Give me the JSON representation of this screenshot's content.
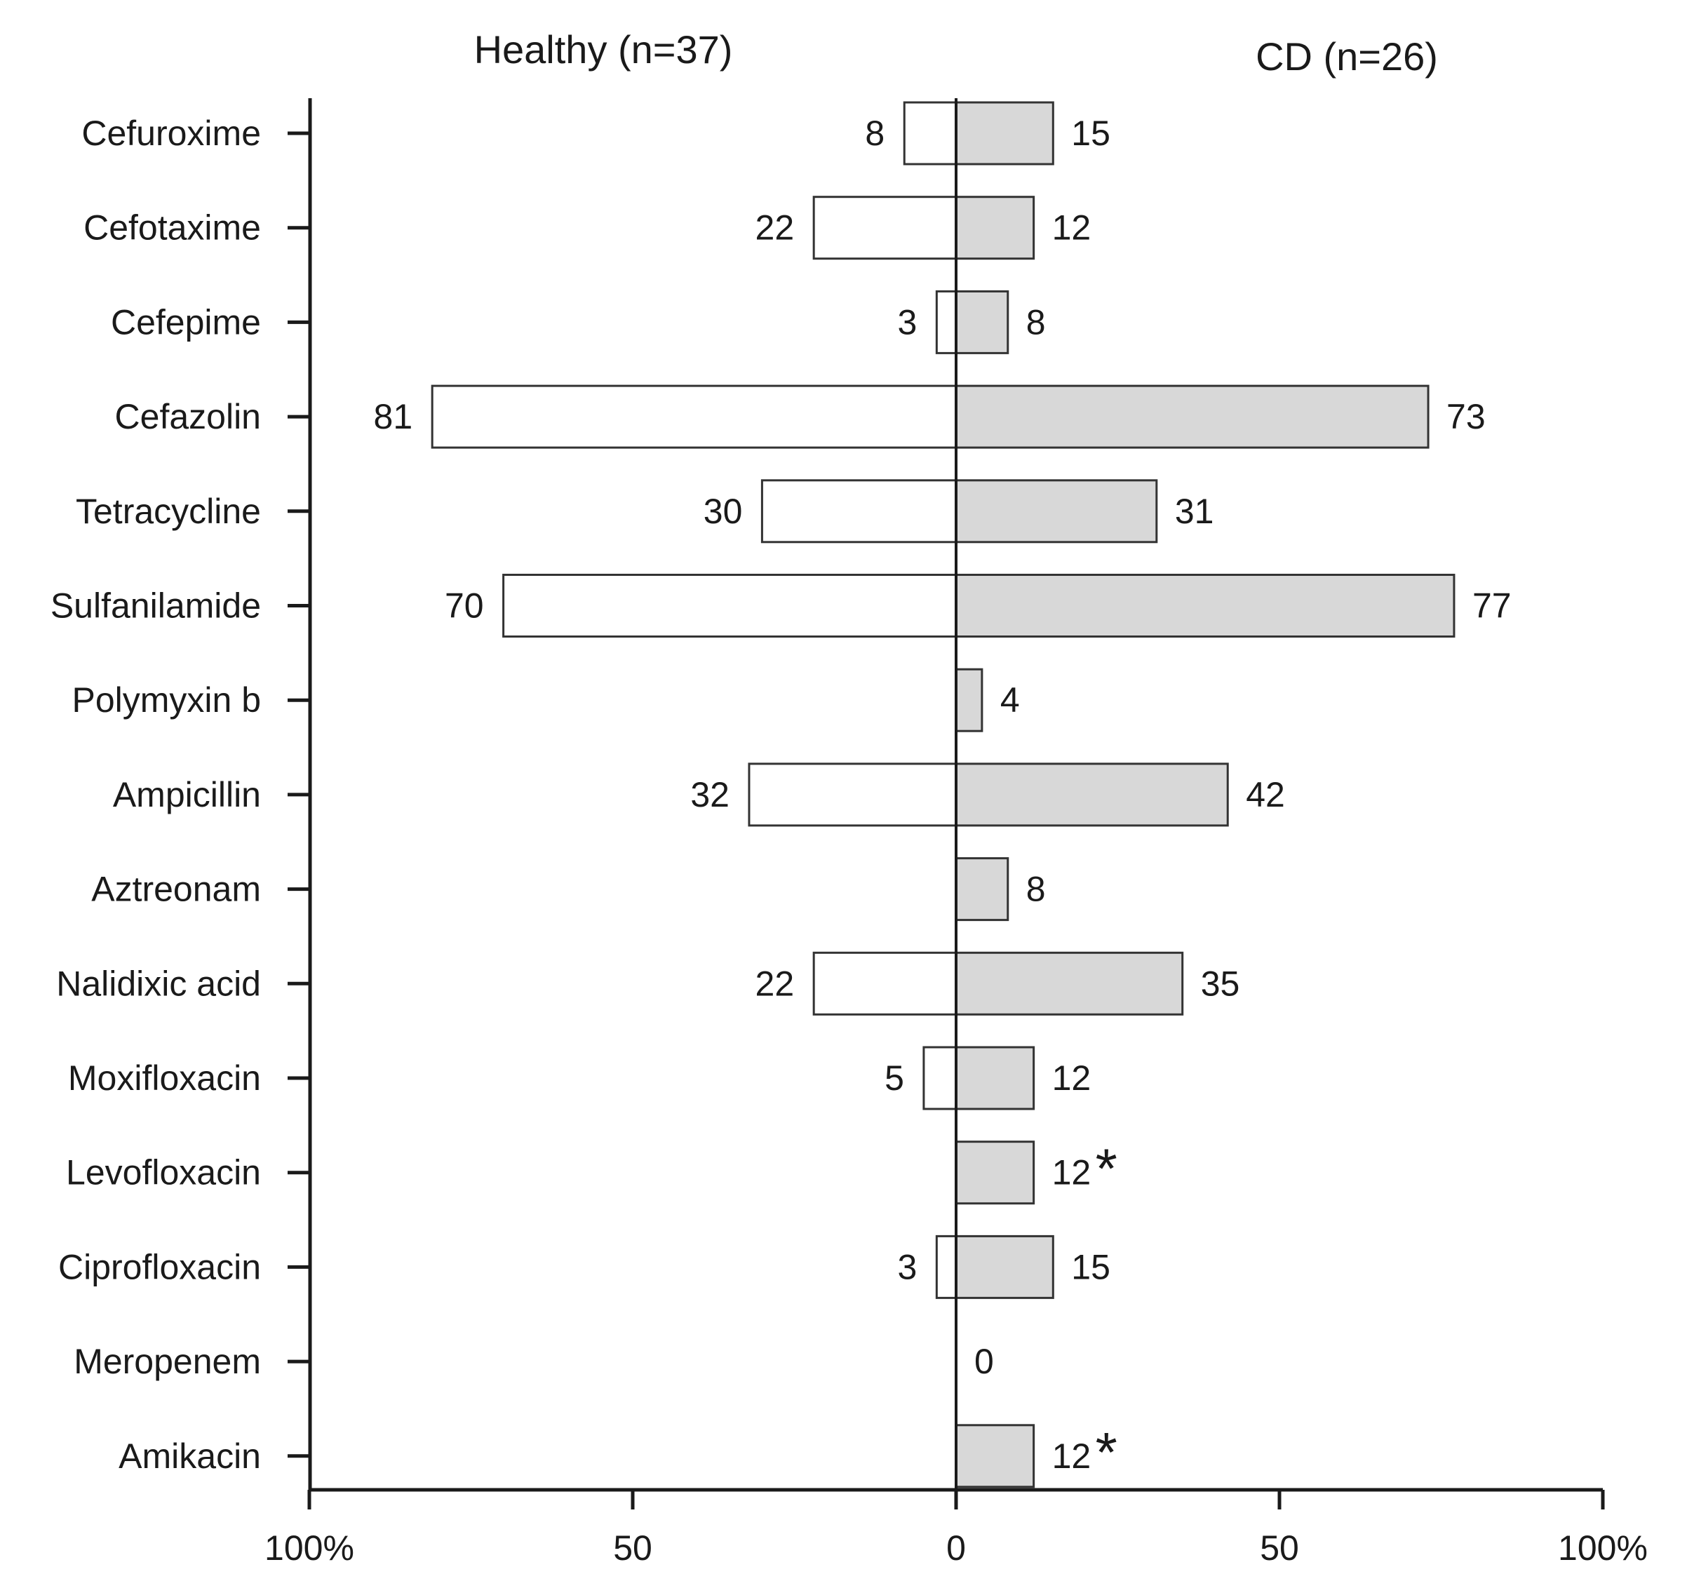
{
  "chart_data": {
    "type": "bar",
    "orientation": "horizontal-diverging",
    "title": "",
    "xlabel": "",
    "ylabel": "",
    "xlim": [
      -100,
      100
    ],
    "categories": [
      "Cefuroxime",
      "Cefotaxime",
      "Cefepime",
      "Cefazolin",
      "Tetracycline",
      "Sulfanilamide",
      "Polymyxin b",
      "Ampicillin",
      "Aztreonam",
      "Nalidixic acid",
      "Moxifloxacin",
      "Levofloxacin",
      "Ciprofloxacin",
      "Meropenem",
      "Amikacin"
    ],
    "series": [
      {
        "name": "Healthy (n=37)",
        "side": "left",
        "fill": "#ffffff",
        "values": [
          8,
          22,
          3,
          81,
          30,
          70,
          0,
          32,
          0,
          22,
          5,
          0,
          3,
          0,
          0
        ],
        "labels": [
          "8",
          "22",
          "3",
          "81",
          "30",
          "70",
          "",
          "32",
          "",
          "22",
          "5",
          "",
          "3",
          "",
          ""
        ]
      },
      {
        "name": "CD (n=26)",
        "side": "right",
        "fill": "#d8d8d8",
        "values": [
          15,
          12,
          8,
          73,
          31,
          77,
          4,
          42,
          8,
          35,
          12,
          12,
          15,
          0,
          12
        ],
        "labels": [
          "15",
          "12",
          "8",
          "73",
          "31",
          "77",
          "4",
          "42",
          "8",
          "35",
          "12",
          "12",
          "15",
          "0",
          "12"
        ],
        "significant": [
          false,
          false,
          false,
          false,
          false,
          false,
          false,
          false,
          false,
          false,
          false,
          true,
          false,
          false,
          true
        ]
      }
    ],
    "significance_marker": "*",
    "x_ticks": [
      "100%",
      "50",
      "0",
      "50",
      "100%"
    ],
    "x_tick_values": [
      -100,
      -50,
      0,
      50,
      100
    ]
  },
  "colors": {
    "axis": "#1a1a1a",
    "bar_stroke": "#333333",
    "healthy_fill": "#ffffff",
    "cd_fill": "#d8d8d8"
  }
}
